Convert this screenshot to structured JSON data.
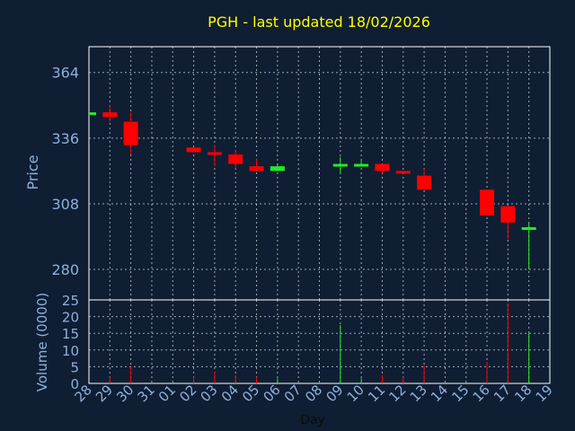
{
  "chart_data": {
    "type": "candlestick",
    "title": "PGH - last updated 18/02/2026",
    "xlabel": "Day",
    "price_ylabel": "Price",
    "volume_ylabel": "Volume (0000)",
    "price_ylim": [
      267,
      375
    ],
    "volume_ylim": [
      0,
      25
    ],
    "price_ticks": [
      "364",
      "336",
      "308",
      "280"
    ],
    "volume_ticks": [
      "0",
      "5",
      "10",
      "15",
      "20",
      "25"
    ],
    "grid": true,
    "colors": {
      "background": "#0f1e33",
      "axis": "#ffffff",
      "grid": "#ffffff",
      "title": "#ffff00",
      "label": "#8fb0dc",
      "up": "#22ee22",
      "down": "#ff0000"
    },
    "categories": [
      "28",
      "29",
      "30",
      "31",
      "01",
      "02",
      "03",
      "04",
      "05",
      "06",
      "07",
      "08",
      "09",
      "10",
      "11",
      "12",
      "13",
      "14",
      "15",
      "16",
      "17",
      "18",
      "19"
    ],
    "candles": [
      {
        "x": "28",
        "open": 347,
        "close": 347,
        "high": 347,
        "low": 347
      },
      {
        "x": "29",
        "open": 347,
        "close": 345,
        "high": 350,
        "low": 343
      },
      {
        "x": "30",
        "open": 343,
        "close": 333,
        "high": 347,
        "low": 329
      },
      {
        "x": "02",
        "open": 332,
        "close": 330,
        "high": 332,
        "low": 330
      },
      {
        "x": "03",
        "open": 330,
        "close": 329,
        "high": 333,
        "low": 324
      },
      {
        "x": "04",
        "open": 329,
        "close": 325,
        "high": 331,
        "low": 323
      },
      {
        "x": "05",
        "open": 324,
        "close": 322,
        "high": 327,
        "low": 322
      },
      {
        "x": "06",
        "open": 322,
        "close": 324,
        "high": 325,
        "low": 322
      },
      {
        "x": "09",
        "open": 325,
        "close": 325,
        "high": 328,
        "low": 321
      },
      {
        "x": "10",
        "open": 325,
        "close": 325,
        "high": 327,
        "low": 324
      },
      {
        "x": "11",
        "open": 325,
        "close": 322,
        "high": 325,
        "low": 321
      },
      {
        "x": "12",
        "open": 322,
        "close": 321,
        "high": 322,
        "low": 321
      },
      {
        "x": "13",
        "open": 320,
        "close": 314,
        "high": 323,
        "low": 314
      },
      {
        "x": "16",
        "open": 314,
        "close": 303,
        "high": 314,
        "low": 303
      },
      {
        "x": "17",
        "open": 307,
        "close": 300,
        "high": 307,
        "low": 293
      },
      {
        "x": "18",
        "open": 297,
        "close": 298,
        "high": 300,
        "low": 280
      }
    ],
    "volume": [
      {
        "x": "28",
        "value": 0,
        "dir": "down"
      },
      {
        "x": "29",
        "value": 2,
        "dir": "down"
      },
      {
        "x": "30",
        "value": 5,
        "dir": "down"
      },
      {
        "x": "02",
        "value": 2,
        "dir": "down"
      },
      {
        "x": "03",
        "value": 3.5,
        "dir": "down"
      },
      {
        "x": "04",
        "value": 2.5,
        "dir": "down"
      },
      {
        "x": "05",
        "value": 2,
        "dir": "down"
      },
      {
        "x": "06",
        "value": 1.5,
        "dir": "up"
      },
      {
        "x": "09",
        "value": 17.5,
        "dir": "up"
      },
      {
        "x": "10",
        "value": 1.5,
        "dir": "up"
      },
      {
        "x": "11",
        "value": 2.5,
        "dir": "down"
      },
      {
        "x": "12",
        "value": 2,
        "dir": "down"
      },
      {
        "x": "13",
        "value": 5.5,
        "dir": "down"
      },
      {
        "x": "16",
        "value": 6.5,
        "dir": "down"
      },
      {
        "x": "17",
        "value": 24,
        "dir": "down"
      },
      {
        "x": "18",
        "value": 15,
        "dir": "up"
      }
    ]
  }
}
